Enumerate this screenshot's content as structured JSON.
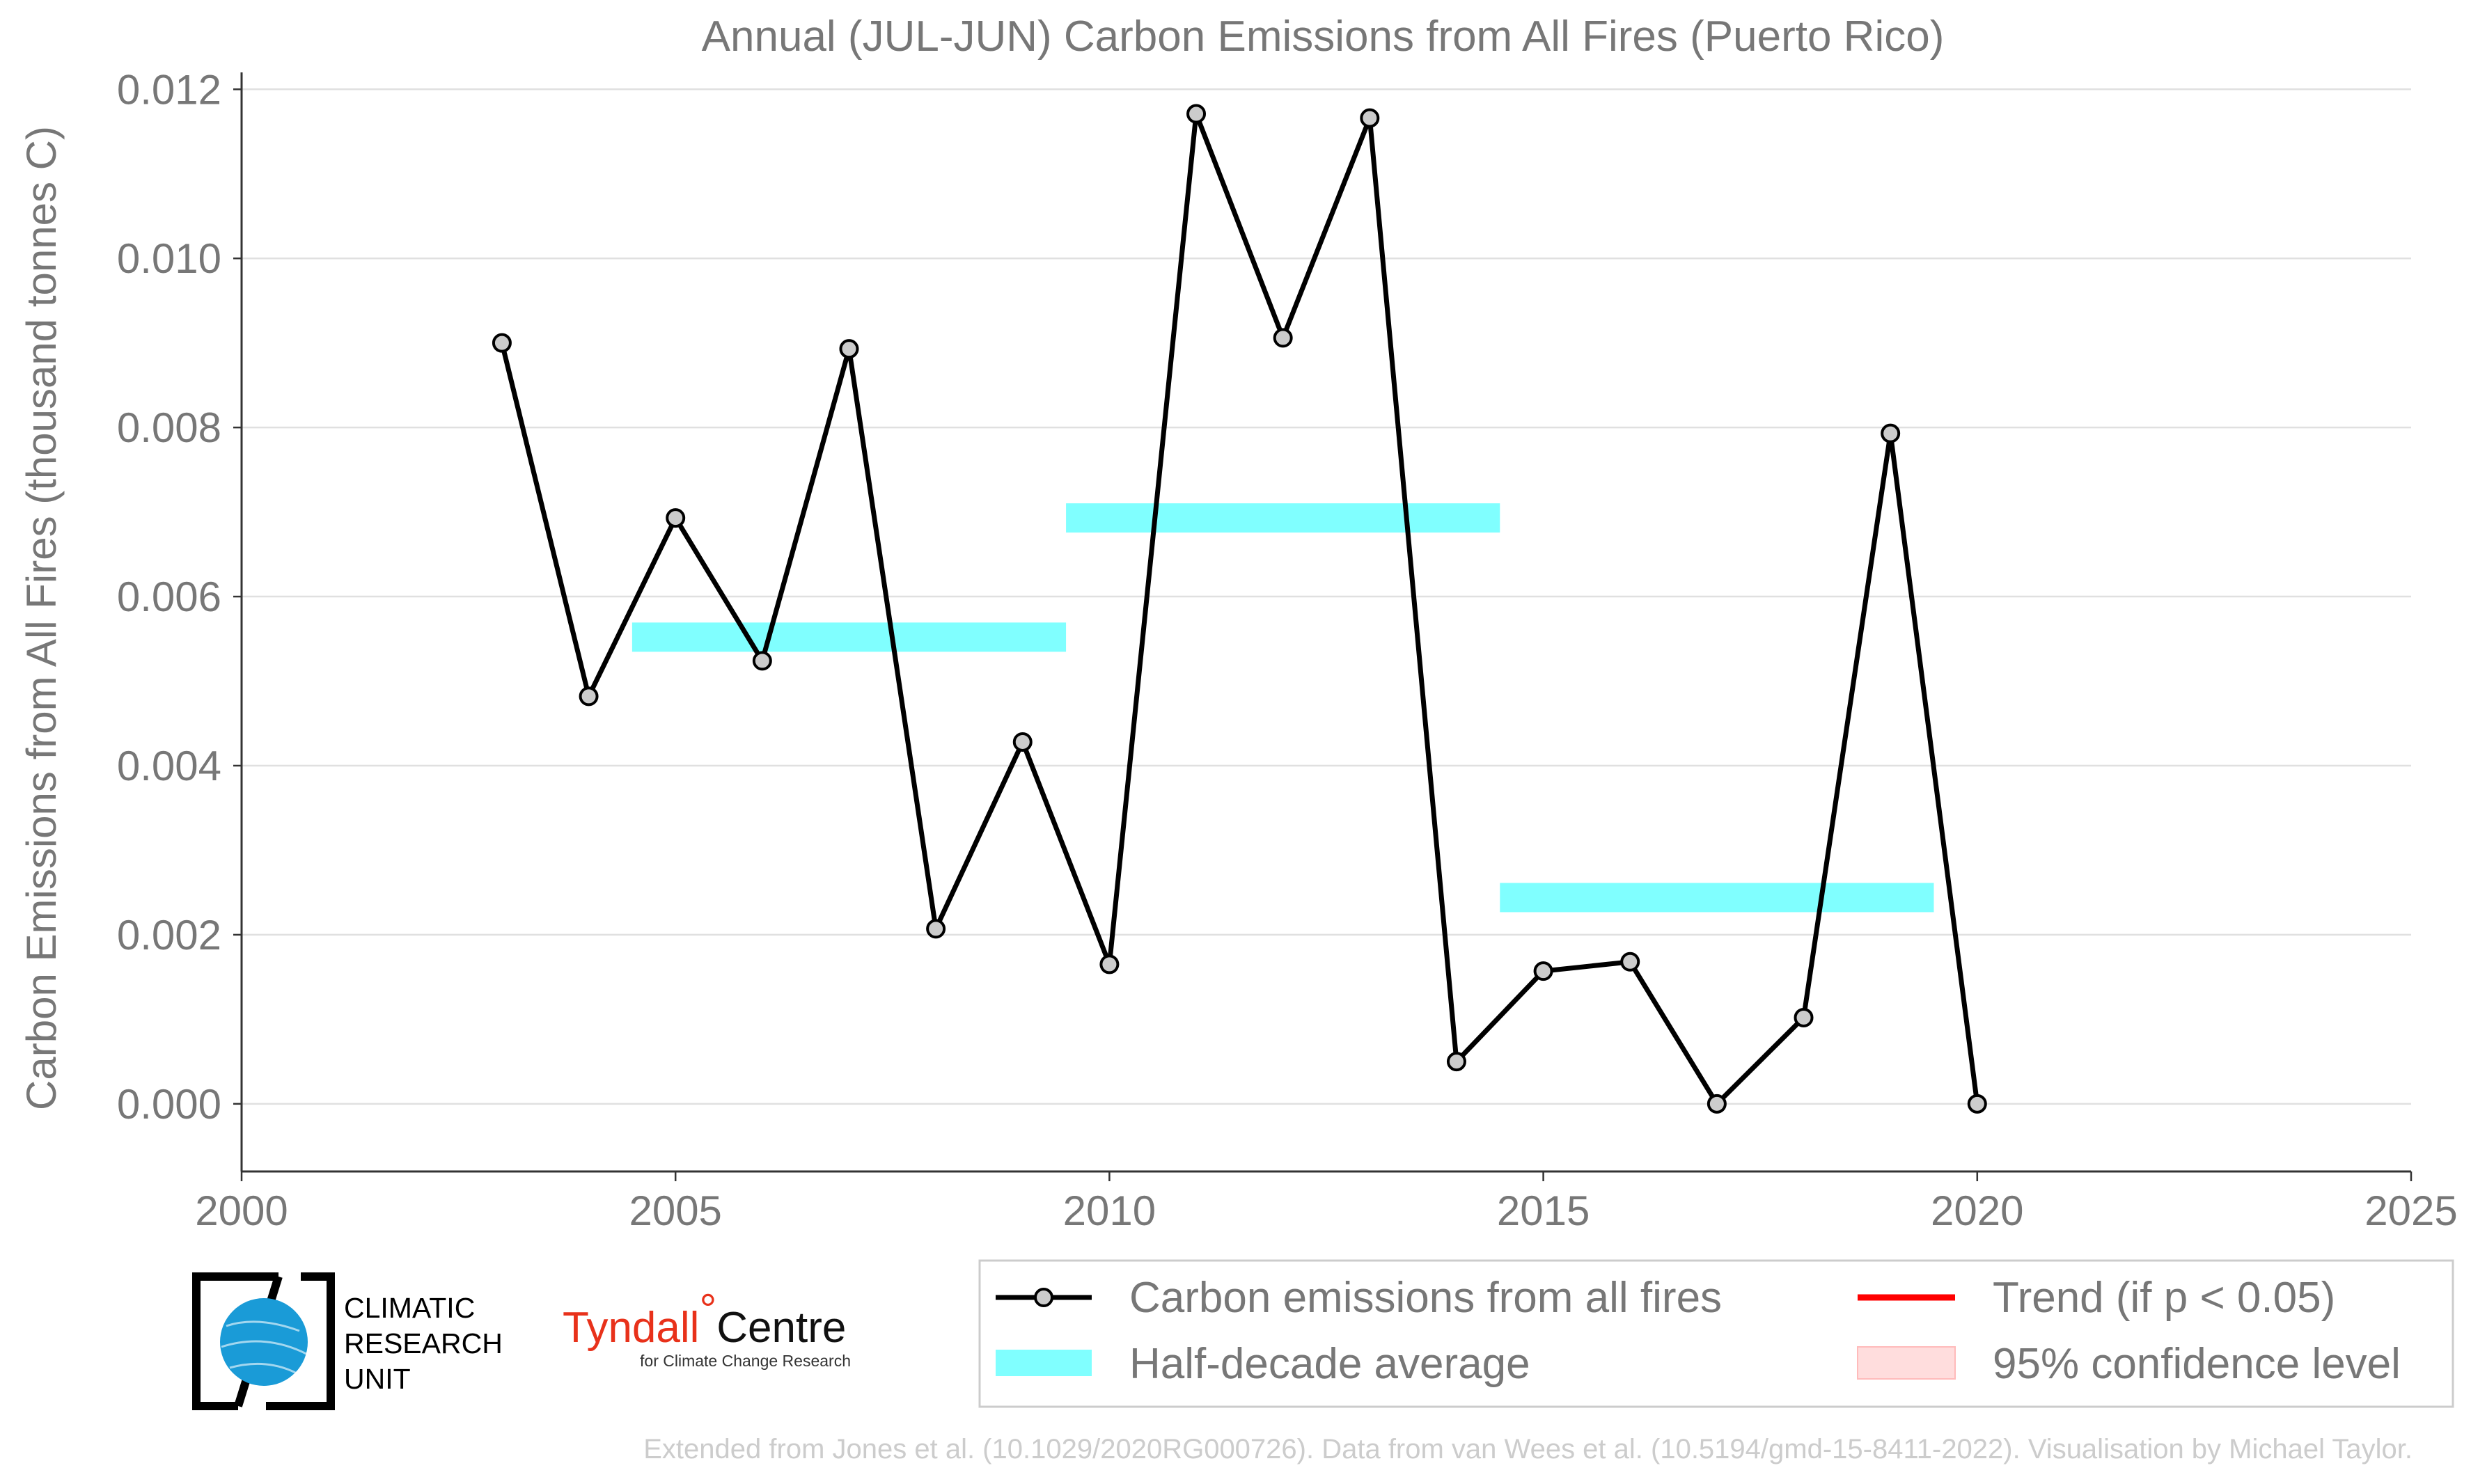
{
  "chart_data": {
    "type": "line",
    "title": "Annual (JUL-JUN) Carbon Emissions from All Fires (Puerto Rico)",
    "xlabel": "",
    "ylabel": "Carbon Emissions from All Fires (thousand tonnes C)",
    "xlim": [
      2000,
      2025
    ],
    "ylim": [
      -0.0008,
      0.0122
    ],
    "x_ticks": [
      "2000",
      "2005",
      "2010",
      "2015",
      "2020",
      "2025"
    ],
    "x_tick_values": [
      2000,
      2005,
      2010,
      2015,
      2020,
      2025
    ],
    "y_ticks": [
      "0.000",
      "0.002",
      "0.004",
      "0.006",
      "0.008",
      "0.010",
      "0.012"
    ],
    "y_tick_values": [
      0.0,
      0.002,
      0.004,
      0.006,
      0.008,
      0.01,
      0.012
    ],
    "grid": "horizontal",
    "series": [
      {
        "name": "Carbon emissions from all fires",
        "color": "#000000",
        "marker_color": "#cccccc",
        "x": [
          2003,
          2004,
          2005,
          2006,
          2007,
          2008,
          2009,
          2010,
          2011,
          2012,
          2013,
          2014,
          2015,
          2016,
          2017,
          2018,
          2019,
          2020
        ],
        "y": [
          0.009,
          0.00482,
          0.00693,
          0.00524,
          0.00893,
          0.00207,
          0.00428,
          0.00165,
          0.01171,
          0.00906,
          0.01166,
          0.0005,
          0.00157,
          0.00168,
          0.0,
          0.00102,
          0.00793,
          0.0
        ]
      }
    ],
    "half_decade_average": {
      "name": "Half-decade average",
      "color": "#80ffff",
      "segments": [
        {
          "x_start": 2004.5,
          "x_end": 2009.5,
          "value": 0.00552
        },
        {
          "x_start": 2009.5,
          "x_end": 2014.5,
          "value": 0.00693
        },
        {
          "x_start": 2014.5,
          "x_end": 2019.5,
          "value": 0.00244
        }
      ]
    },
    "legend": {
      "placement": "bottom-right",
      "entries": [
        {
          "label": "Carbon emissions from all fires",
          "kind": "line-marker",
          "color": "#000000"
        },
        {
          "label": "Trend (if p < 0.05)",
          "kind": "line",
          "color": "#ff0000"
        },
        {
          "label": "Half-decade average",
          "kind": "band",
          "color": "#80ffff"
        },
        {
          "label": "95% confidence level",
          "kind": "band",
          "color": "#ffdddd"
        }
      ]
    }
  },
  "logos": {
    "cru": [
      "CLIMATIC",
      "RESEARCH",
      "UNIT"
    ],
    "tyndall_main": "Tyndall",
    "tyndall_degree": "°",
    "tyndall_centre": "Centre",
    "tyndall_sub": "for Climate Change Research",
    "cru_globe_color": "#1a9bd7"
  },
  "footer": "Extended from Jones et al. (10.1029/2020RG000726). Data from van Wees et al. (10.5194/gmd-15-8411-2022). Visualisation by Michael Taylor."
}
